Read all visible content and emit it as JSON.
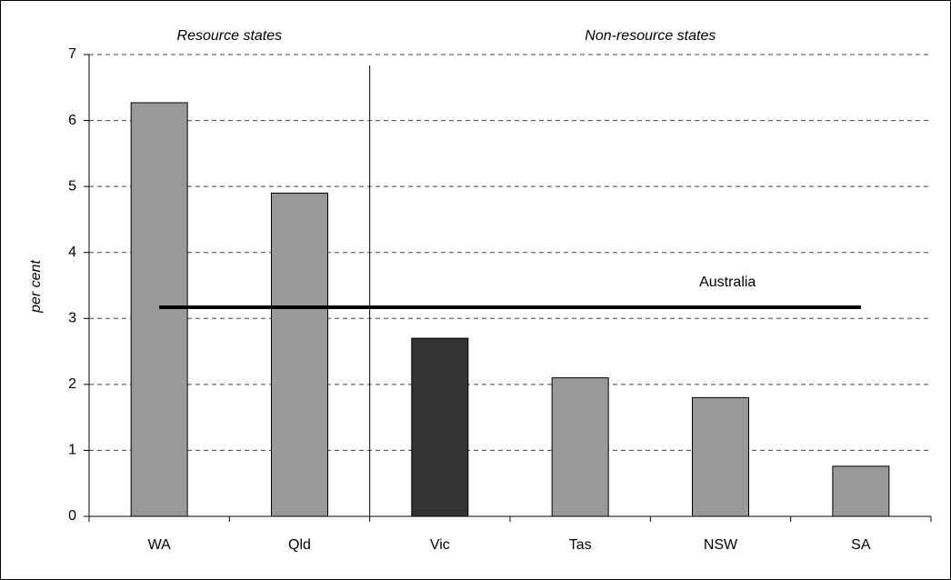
{
  "chart_data": {
    "type": "bar",
    "y_label": "per cent",
    "categories": [
      "WA",
      "Qld",
      "Vic",
      "Tas",
      "NSW",
      "SA"
    ],
    "values": [
      6.27,
      4.9,
      2.7,
      2.1,
      1.8,
      0.76
    ],
    "colors": [
      "#999999",
      "#999999",
      "#333333",
      "#999999",
      "#999999",
      "#999999"
    ],
    "groups": [
      {
        "label": "Resource states",
        "categories": [
          "WA",
          "Qld"
        ]
      },
      {
        "label": "Non-resource states",
        "categories": [
          "Vic",
          "Tas",
          "NSW",
          "SA"
        ]
      }
    ],
    "reference_line": {
      "label": "Australia",
      "value": 3.17,
      "color": "#000000"
    },
    "ylim": [
      0,
      7
    ],
    "yticks": [
      0,
      1,
      2,
      3,
      4,
      5,
      6,
      7
    ],
    "grid": true
  }
}
